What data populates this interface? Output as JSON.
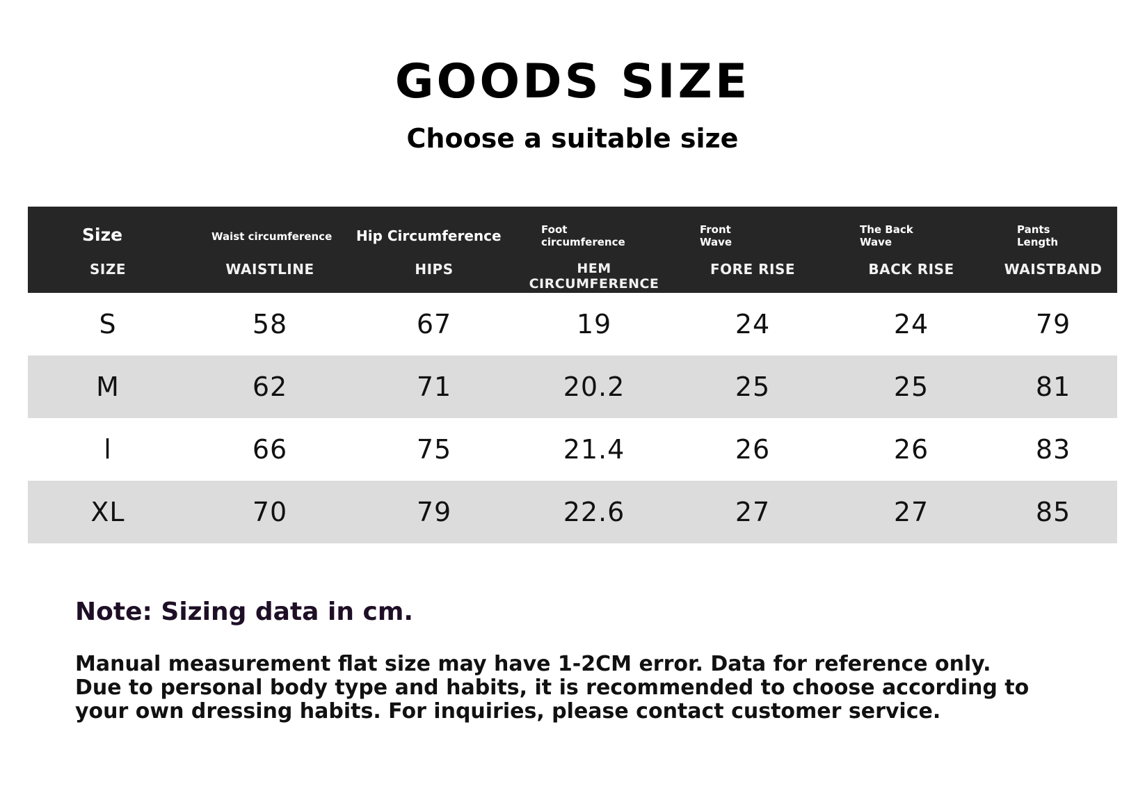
{
  "header": {
    "title": "GOODS SIZE",
    "subtitle": "Choose a suitable size"
  },
  "table": {
    "columns": [
      {
        "cn": "Size",
        "en": "SIZE"
      },
      {
        "cn": "Waist circumference",
        "en": "WAISTLINE"
      },
      {
        "cn": "Hip Circumference",
        "en": "HIPS"
      },
      {
        "cn": "Foot circumference",
        "en": "HEM CIRCUMFERENCE"
      },
      {
        "cn": "Front Wave",
        "en": "FORE RISE"
      },
      {
        "cn": "The Back Wave",
        "en": "BACK RISE"
      },
      {
        "cn": "Pants Length",
        "en": "WAISTBAND"
      }
    ],
    "rows": [
      [
        "S",
        "58",
        "67",
        "19",
        "24",
        "24",
        "79"
      ],
      [
        "M",
        "62",
        "71",
        "20.2",
        "25",
        "25",
        "81"
      ],
      [
        "l",
        "66",
        "75",
        "21.4",
        "26",
        "26",
        "83"
      ],
      [
        "XL",
        "70",
        "79",
        "22.6",
        "27",
        "27",
        "85"
      ]
    ],
    "header_bg": "#262626",
    "stripe_bg": "#dcdcdc"
  },
  "note": {
    "title": "Note: Sizing data in cm.",
    "lines": [
      "Manual measurement flat size may have 1-2CM error. Data for reference only.",
      "Due to personal body type and habits, it is recommended to choose according to",
      "your own dressing habits. For inquiries, please contact customer service."
    ]
  }
}
